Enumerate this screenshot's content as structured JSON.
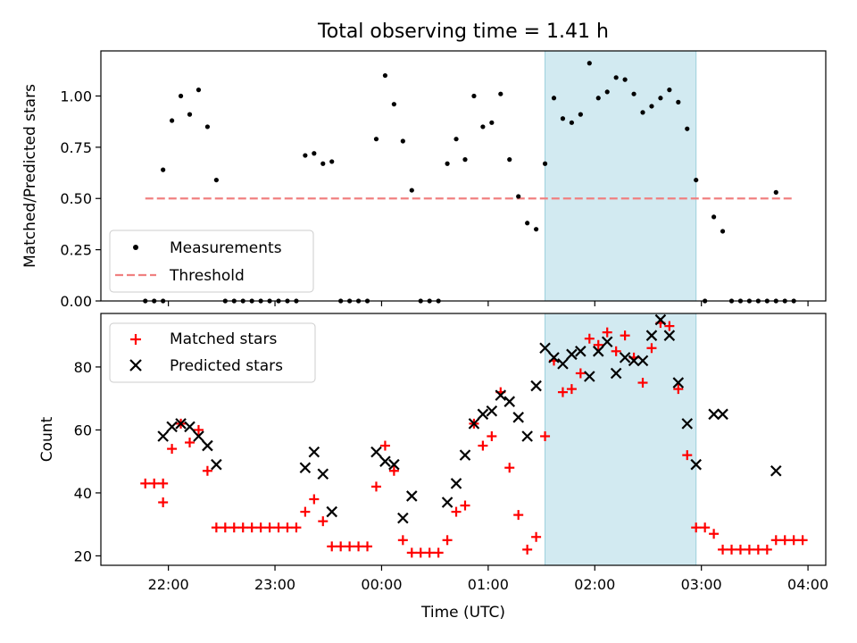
{
  "chart_data": [
    {
      "type": "scatter",
      "title": "Total observing time = 1.41 h",
      "ylabel": "Matched/Predicted stars",
      "ylim": [
        0,
        1.22
      ],
      "yticks": [
        0.0,
        0.25,
        0.5,
        0.75,
        1.0
      ],
      "ytick_labels": [
        "0.00",
        "0.25",
        "0.50",
        "0.75",
        "1.00"
      ],
      "legend_position": "lower-left",
      "highlight_span": {
        "start": "01:32",
        "end": "02:57",
        "color": "#add8e6"
      },
      "threshold": {
        "name": "Threshold",
        "value": 0.5,
        "x_start": "21:47",
        "x_end": "03:52",
        "color": "#f08080",
        "style": "dashed"
      },
      "series": [
        {
          "name": "Measurements",
          "marker": "dot",
          "color": "#000000",
          "points": [
            [
              "21:47",
              0.0
            ],
            [
              "21:52",
              0.0
            ],
            [
              "21:57",
              0.0
            ],
            [
              "21:57",
              0.64
            ],
            [
              "22:02",
              0.88
            ],
            [
              "22:07",
              1.0
            ],
            [
              "22:12",
              0.91
            ],
            [
              "22:17",
              1.03
            ],
            [
              "22:22",
              0.85
            ],
            [
              "22:27",
              0.59
            ],
            [
              "22:32",
              0.0
            ],
            [
              "22:37",
              0.0
            ],
            [
              "22:42",
              0.0
            ],
            [
              "22:47",
              0.0
            ],
            [
              "22:52",
              0.0
            ],
            [
              "22:57",
              0.0
            ],
            [
              "23:02",
              0.0
            ],
            [
              "23:07",
              0.0
            ],
            [
              "23:12",
              0.0
            ],
            [
              "23:17",
              0.71
            ],
            [
              "23:22",
              0.72
            ],
            [
              "23:27",
              0.67
            ],
            [
              "23:32",
              0.68
            ],
            [
              "23:37",
              0.0
            ],
            [
              "23:42",
              0.0
            ],
            [
              "23:47",
              0.0
            ],
            [
              "23:52",
              0.0
            ],
            [
              "23:57",
              0.79
            ],
            [
              "00:02",
              1.1
            ],
            [
              "00:07",
              0.96
            ],
            [
              "00:12",
              0.78
            ],
            [
              "00:17",
              0.54
            ],
            [
              "00:22",
              0.0
            ],
            [
              "00:27",
              0.0
            ],
            [
              "00:32",
              0.0
            ],
            [
              "00:37",
              0.67
            ],
            [
              "00:42",
              0.79
            ],
            [
              "00:47",
              0.69
            ],
            [
              "00:52",
              1.0
            ],
            [
              "00:57",
              0.85
            ],
            [
              "01:02",
              0.87
            ],
            [
              "01:07",
              1.01
            ],
            [
              "01:12",
              0.69
            ],
            [
              "01:17",
              0.51
            ],
            [
              "01:22",
              0.38
            ],
            [
              "01:27",
              0.35
            ],
            [
              "01:32",
              0.67
            ],
            [
              "01:37",
              0.99
            ],
            [
              "01:42",
              0.89
            ],
            [
              "01:47",
              0.87
            ],
            [
              "01:52",
              0.91
            ],
            [
              "01:57",
              1.16
            ],
            [
              "02:02",
              0.99
            ],
            [
              "02:07",
              1.02
            ],
            [
              "02:12",
              1.09
            ],
            [
              "02:17",
              1.08
            ],
            [
              "02:22",
              1.01
            ],
            [
              "02:27",
              0.92
            ],
            [
              "02:32",
              0.95
            ],
            [
              "02:37",
              0.99
            ],
            [
              "02:42",
              1.03
            ],
            [
              "02:47",
              0.97
            ],
            [
              "02:52",
              0.84
            ],
            [
              "02:57",
              0.59
            ],
            [
              "03:02",
              0.0
            ],
            [
              "03:07",
              0.41
            ],
            [
              "03:12",
              0.34
            ],
            [
              "03:17",
              0.0
            ],
            [
              "03:22",
              0.0
            ],
            [
              "03:27",
              0.0
            ],
            [
              "03:32",
              0.0
            ],
            [
              "03:37",
              0.0
            ],
            [
              "03:42",
              0.53
            ],
            [
              "03:42",
              0.0
            ],
            [
              "03:47",
              0.0
            ],
            [
              "03:52",
              0.0
            ]
          ]
        }
      ]
    },
    {
      "type": "scatter",
      "xlabel": "Time (UTC)",
      "ylabel": "Count",
      "ylim": [
        17,
        97
      ],
      "yticks": [
        20,
        40,
        60,
        80
      ],
      "ytick_labels": [
        "20",
        "40",
        "60",
        "80"
      ],
      "xlim": [
        "21:22",
        "04:10"
      ],
      "xticks": [
        "22:00",
        "23:00",
        "00:00",
        "01:00",
        "02:00",
        "03:00",
        "04:00"
      ],
      "xtick_labels": [
        "22:00",
        "23:00",
        "00:00",
        "01:00",
        "02:00",
        "03:00",
        "04:00"
      ],
      "legend_position": "upper-left",
      "highlight_span": {
        "start": "01:32",
        "end": "02:57",
        "color": "#add8e6"
      },
      "series": [
        {
          "name": "Matched stars",
          "marker": "plus",
          "color": "#ff0000",
          "points": [
            [
              "21:47",
              43
            ],
            [
              "21:52",
              43
            ],
            [
              "21:57",
              43
            ],
            [
              "21:57",
              37
            ],
            [
              "22:02",
              54
            ],
            [
              "22:07",
              62
            ],
            [
              "22:12",
              56
            ],
            [
              "22:17",
              60
            ],
            [
              "22:22",
              47
            ],
            [
              "22:27",
              29
            ],
            [
              "22:32",
              29
            ],
            [
              "22:37",
              29
            ],
            [
              "22:42",
              29
            ],
            [
              "22:47",
              29
            ],
            [
              "22:52",
              29
            ],
            [
              "22:57",
              29
            ],
            [
              "23:02",
              29
            ],
            [
              "23:07",
              29
            ],
            [
              "23:12",
              29
            ],
            [
              "23:17",
              34
            ],
            [
              "23:22",
              38
            ],
            [
              "23:27",
              31
            ],
            [
              "23:32",
              23
            ],
            [
              "23:37",
              23
            ],
            [
              "23:42",
              23
            ],
            [
              "23:47",
              23
            ],
            [
              "23:52",
              23
            ],
            [
              "23:57",
              42
            ],
            [
              "00:02",
              55
            ],
            [
              "00:07",
              47
            ],
            [
              "00:12",
              25
            ],
            [
              "00:17",
              21
            ],
            [
              "00:22",
              21
            ],
            [
              "00:27",
              21
            ],
            [
              "00:32",
              21
            ],
            [
              "00:37",
              25
            ],
            [
              "00:42",
              34
            ],
            [
              "00:47",
              36
            ],
            [
              "00:52",
              62
            ],
            [
              "00:57",
              55
            ],
            [
              "01:02",
              58
            ],
            [
              "01:07",
              72
            ],
            [
              "01:12",
              48
            ],
            [
              "01:17",
              33
            ],
            [
              "01:22",
              22
            ],
            [
              "01:27",
              26
            ],
            [
              "01:32",
              58
            ],
            [
              "01:37",
              82
            ],
            [
              "01:42",
              72
            ],
            [
              "01:47",
              73
            ],
            [
              "01:52",
              78
            ],
            [
              "01:57",
              89
            ],
            [
              "02:02",
              87
            ],
            [
              "02:07",
              91
            ],
            [
              "02:12",
              85
            ],
            [
              "02:17",
              90
            ],
            [
              "02:22",
              83
            ],
            [
              "02:27",
              75
            ],
            [
              "02:32",
              86
            ],
            [
              "02:37",
              94
            ],
            [
              "02:42",
              93
            ],
            [
              "02:47",
              73
            ],
            [
              "02:52",
              52
            ],
            [
              "02:57",
              29
            ],
            [
              "03:02",
              29
            ],
            [
              "03:07",
              27
            ],
            [
              "03:12",
              22
            ],
            [
              "03:17",
              22
            ],
            [
              "03:22",
              22
            ],
            [
              "03:27",
              22
            ],
            [
              "03:32",
              22
            ],
            [
              "03:37",
              22
            ],
            [
              "03:42",
              25
            ],
            [
              "03:47",
              25
            ],
            [
              "03:52",
              25
            ],
            [
              "03:57",
              25
            ]
          ]
        },
        {
          "name": "Predicted stars",
          "marker": "x",
          "color": "#000000",
          "points": [
            [
              "21:57",
              58
            ],
            [
              "22:02",
              61
            ],
            [
              "22:07",
              62
            ],
            [
              "22:12",
              61
            ],
            [
              "22:17",
              58
            ],
            [
              "22:22",
              55
            ],
            [
              "22:27",
              49
            ],
            [
              "23:17",
              48
            ],
            [
              "23:22",
              53
            ],
            [
              "23:27",
              46
            ],
            [
              "23:32",
              34
            ],
            [
              "23:57",
              53
            ],
            [
              "00:02",
              50
            ],
            [
              "00:07",
              49
            ],
            [
              "00:12",
              32
            ],
            [
              "00:17",
              39
            ],
            [
              "00:37",
              37
            ],
            [
              "00:42",
              43
            ],
            [
              "00:47",
              52
            ],
            [
              "00:52",
              62
            ],
            [
              "00:57",
              65
            ],
            [
              "01:02",
              66
            ],
            [
              "01:07",
              71
            ],
            [
              "01:12",
              69
            ],
            [
              "01:17",
              64
            ],
            [
              "01:22",
              58
            ],
            [
              "01:27",
              74
            ],
            [
              "01:32",
              86
            ],
            [
              "01:37",
              83
            ],
            [
              "01:42",
              81
            ],
            [
              "01:47",
              84
            ],
            [
              "01:52",
              85
            ],
            [
              "01:57",
              77
            ],
            [
              "02:02",
              85
            ],
            [
              "02:07",
              88
            ],
            [
              "02:12",
              78
            ],
            [
              "02:17",
              83
            ],
            [
              "02:22",
              82
            ],
            [
              "02:27",
              82
            ],
            [
              "02:32",
              90
            ],
            [
              "02:37",
              95
            ],
            [
              "02:42",
              90
            ],
            [
              "02:47",
              75
            ],
            [
              "02:52",
              62
            ],
            [
              "02:57",
              49
            ],
            [
              "03:07",
              65
            ],
            [
              "03:12",
              65
            ],
            [
              "03:42",
              47
            ]
          ]
        }
      ]
    }
  ]
}
